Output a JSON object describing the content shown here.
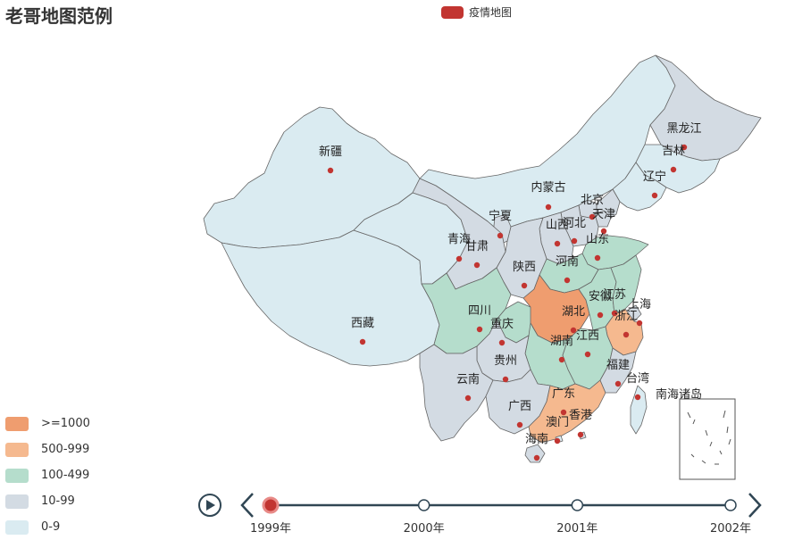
{
  "title": "老哥地图范例",
  "legend": {
    "label": "疫情地图",
    "color": "#c23531"
  },
  "visual_map": [
    {
      "label": ">=1000",
      "color": "#ef9d6f"
    },
    {
      "label": "500-999",
      "color": "#f5b98f"
    },
    {
      "label": "100-499",
      "color": "#b5ddcc"
    },
    {
      "label": "10-99",
      "color": "#d3dbe3"
    },
    {
      "label": "0-9",
      "color": "#daebf1"
    }
  ],
  "provinces": [
    {
      "name": "新疆",
      "level": 4
    },
    {
      "name": "西藏",
      "level": 4
    },
    {
      "name": "内蒙古",
      "level": 4
    },
    {
      "name": "黑龙江",
      "level": 3
    },
    {
      "name": "吉林",
      "level": 4
    },
    {
      "name": "辽宁",
      "level": 4
    },
    {
      "name": "北京",
      "level": 3
    },
    {
      "name": "天津",
      "level": 3
    },
    {
      "name": "河北",
      "level": 3
    },
    {
      "name": "山西",
      "level": 3
    },
    {
      "name": "山东",
      "level": 2
    },
    {
      "name": "河南",
      "level": 2
    },
    {
      "name": "陕西",
      "level": 3
    },
    {
      "name": "宁夏",
      "level": 3
    },
    {
      "name": "甘肃",
      "level": 3
    },
    {
      "name": "青海",
      "level": 4
    },
    {
      "name": "四川",
      "level": 2
    },
    {
      "name": "重庆",
      "level": 2
    },
    {
      "name": "湖北",
      "level": 0
    },
    {
      "name": "安徽",
      "level": 2
    },
    {
      "name": "江苏",
      "level": 2
    },
    {
      "name": "上海",
      "level": 3
    },
    {
      "name": "浙江",
      "level": 1
    },
    {
      "name": "湖南",
      "level": 2
    },
    {
      "name": "江西",
      "level": 2
    },
    {
      "name": "贵州",
      "level": 3
    },
    {
      "name": "云南",
      "level": 3
    },
    {
      "name": "广西",
      "level": 3
    },
    {
      "name": "广东",
      "level": 1
    },
    {
      "name": "福建",
      "level": 3
    },
    {
      "name": "台湾",
      "level": 4
    },
    {
      "name": "海南",
      "level": 3
    },
    {
      "name": "香港",
      "level": 3
    },
    {
      "name": "澳门",
      "level": 4
    },
    {
      "name": "南海诸岛",
      "level": 4
    }
  ],
  "timeline": {
    "years": [
      "1999年",
      "2000年",
      "2001年",
      "2002年"
    ],
    "current": 0,
    "line_color": "#304654",
    "active_color": "#c23531"
  },
  "icons": {
    "play": "play-icon",
    "prev": "chevron-left-icon",
    "next": "chevron-right-icon"
  }
}
